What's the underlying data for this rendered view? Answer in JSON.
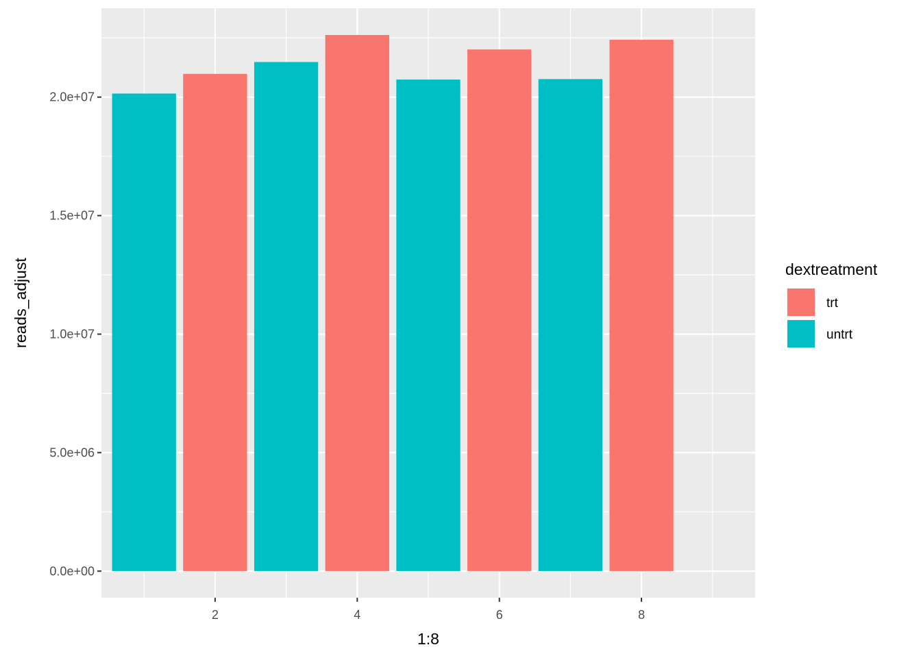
{
  "chart_data": {
    "type": "bar",
    "x": [
      1,
      2,
      3,
      4,
      5,
      6,
      7,
      8
    ],
    "values": [
      20150000,
      20980000,
      21480000,
      22620000,
      20740000,
      22010000,
      20760000,
      22420000
    ],
    "groups": [
      "untrt",
      "trt",
      "untrt",
      "trt",
      "untrt",
      "trt",
      "untrt",
      "trt"
    ],
    "xlabel": "1:8",
    "ylabel": "reads_adjust",
    "xlim": [
      0.4,
      9.6
    ],
    "ylim": [
      -1120000,
      23750000
    ],
    "x_ticks": [
      2,
      4,
      6,
      8
    ],
    "x_tick_labels": [
      "2",
      "4",
      "6",
      "8"
    ],
    "y_ticks": [
      0,
      5000000,
      10000000,
      15000000,
      20000000
    ],
    "y_tick_labels": [
      "0.0e+00",
      "5.0e+06",
      "1.0e+07",
      "1.5e+07",
      "2.0e+07"
    ],
    "grid": true,
    "legend": {
      "title": "dextreatment",
      "position": "right",
      "entries": [
        {
          "name": "trt",
          "color": "#F8766D"
        },
        {
          "name": "untrt",
          "color": "#00BFC4"
        }
      ]
    },
    "colors": {
      "trt": "#F8766D",
      "untrt": "#00BFC4",
      "panel": "#EBEBEB",
      "grid": "#FFFFFF"
    }
  }
}
